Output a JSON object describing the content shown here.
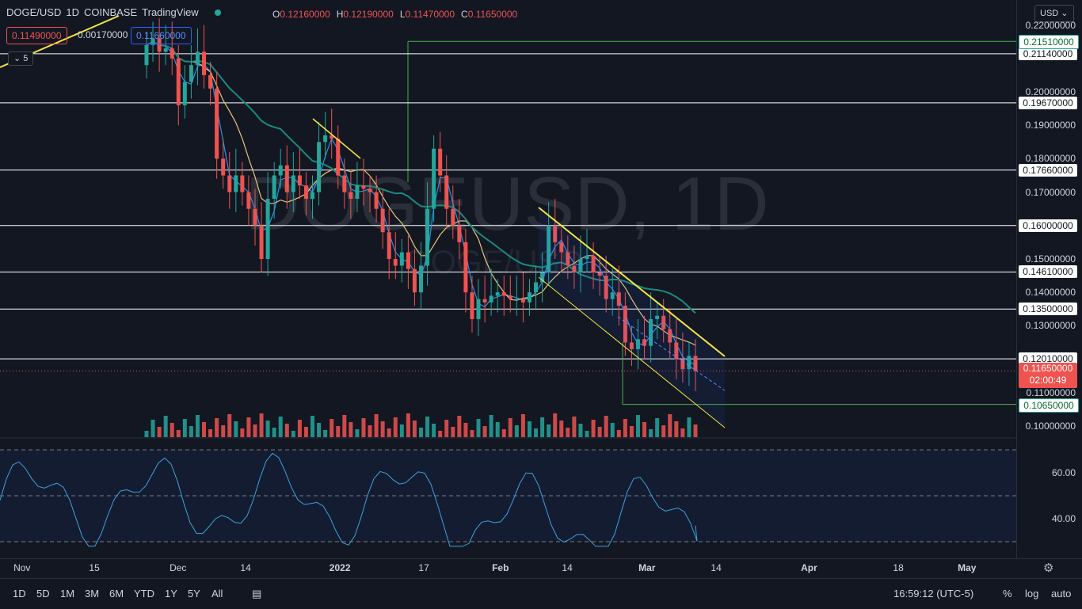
{
  "header": {
    "symbol": "DOGE/USD",
    "interval": "1D",
    "exchange": "COINBASE",
    "source": "TradingView",
    "ohlc": {
      "o_label": "O",
      "o": "0.12160000",
      "h_label": "H",
      "h": "0.12190000",
      "l_label": "L",
      "l": "0.11470000",
      "c_label": "C",
      "c": "0.11650000"
    },
    "sell_price": "0.11490000",
    "spread": "0.00170000",
    "buy_price": "0.11660000",
    "indicator_count": "5",
    "currency": "USD"
  },
  "watermark": {
    "symbol": "DOGEUSD, 1D",
    "sub": "DOGE/USD"
  },
  "price_axis": {
    "labels": [
      "0.22000000",
      "0.20000000",
      "0.19000000",
      "0.18000000",
      "0.17000000",
      "0.15000000",
      "0.14000000",
      "0.13000000",
      "0.11000000",
      "0.10000000"
    ],
    "label_prices": [
      0.22,
      0.2,
      0.19,
      0.18,
      0.17,
      0.15,
      0.14,
      0.13,
      0.11,
      0.1
    ],
    "white_badges": [
      "0.21140000",
      "0.19670000",
      "0.17660000",
      "0.16000000",
      "0.14610000",
      "0.13500000",
      "0.12010000"
    ],
    "white_badge_prices": [
      0.2114,
      0.1967,
      0.1766,
      0.16,
      0.1461,
      0.135,
      0.1201
    ],
    "green_badges": [
      "0.21510000",
      "0.10650000"
    ],
    "green_badge_prices": [
      0.2151,
      0.1065
    ],
    "current_price": "0.11650000",
    "countdown": "02:00:49",
    "rsi_labels": [
      "60.00",
      "40.00"
    ]
  },
  "time_axis": {
    "labels": [
      "Nov",
      "15",
      "Dec",
      "14",
      "2022",
      "17",
      "Feb",
      "14",
      "Mar",
      "14",
      "Apr",
      "18",
      "May"
    ],
    "bold": [
      "2022",
      "Feb",
      "Mar",
      "Apr",
      "May"
    ]
  },
  "bottom_bar": {
    "ranges": [
      "1D",
      "5D",
      "1M",
      "3M",
      "6M",
      "YTD",
      "1Y",
      "5Y",
      "All"
    ],
    "clock": "16:59:12 (UTC-5)",
    "percent": "%",
    "log": "log",
    "auto": "auto"
  },
  "colors": {
    "up": "#26a69a",
    "down": "#ef5350",
    "hline": "#ffffff",
    "trend": "#f5e642",
    "ma_fast": "#2196f3",
    "ma_mid": "#e6c87a",
    "ma_slow": "#1b8a7f",
    "rsi": "#3fa3d9"
  },
  "chart_data": {
    "type": "candlestick",
    "title": "DOGE/USD 1D COINBASE",
    "ylim": [
      0.095,
      0.225
    ],
    "x": [
      "Nov",
      "15",
      "Dec",
      "14",
      "2022",
      "17",
      "Feb",
      "14",
      "Mar",
      "14"
    ],
    "closes": [
      0.214,
      0.216,
      0.212,
      0.213,
      0.21,
      0.196,
      0.203,
      0.208,
      0.212,
      0.205,
      0.201,
      0.18,
      0.175,
      0.17,
      0.175,
      0.17,
      0.165,
      0.16,
      0.15,
      0.168,
      0.175,
      0.178,
      0.17,
      0.175,
      0.172,
      0.168,
      0.17,
      0.185,
      0.187,
      0.186,
      0.175,
      0.17,
      0.168,
      0.172,
      0.171,
      0.17,
      0.165,
      0.158,
      0.15,
      0.148,
      0.152,
      0.147,
      0.14,
      0.148,
      0.165,
      0.183,
      0.175,
      0.165,
      0.16,
      0.155,
      0.14,
      0.132,
      0.138,
      0.137,
      0.139,
      0.14,
      0.139,
      0.138,
      0.138,
      0.137,
      0.14,
      0.143,
      0.146,
      0.16,
      0.155,
      0.152,
      0.148,
      0.146,
      0.15,
      0.151,
      0.146,
      0.145,
      0.138,
      0.14,
      0.136,
      0.125,
      0.123,
      0.126,
      0.124,
      0.132,
      0.133,
      0.129,
      0.125,
      0.12,
      0.117,
      0.121,
      0.1165
    ],
    "horizontal_levels": [
      0.2151,
      0.2114,
      0.1967,
      0.1766,
      0.16,
      0.1461,
      0.135,
      0.1201,
      0.1065
    ],
    "rsi": {
      "levels": [
        70,
        50,
        30
      ],
      "current": 37
    }
  }
}
